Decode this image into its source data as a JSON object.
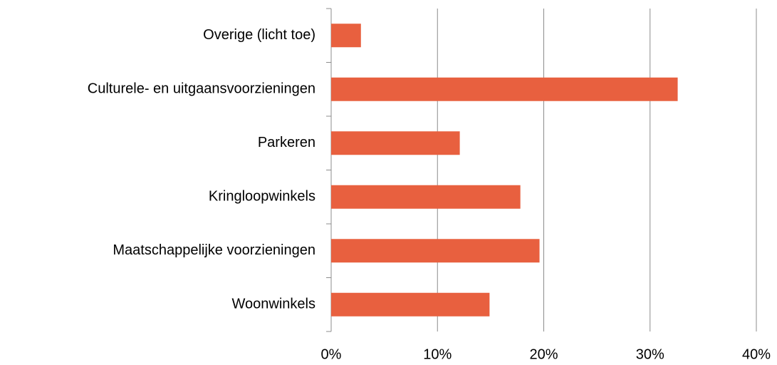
{
  "chart_data": {
    "type": "bar",
    "orientation": "horizontal",
    "categories": [
      "Overige (licht toe)",
      "Culturele- en uitgaansvoorzieningen",
      "Parkeren",
      "Kringloopwinkels",
      "Maatschappelijke voorzieningen",
      "Woonwinkels"
    ],
    "values": [
      2.8,
      32.6,
      12.1,
      17.8,
      19.6,
      14.9
    ],
    "color": "#e8603f",
    "xlim": [
      0,
      40
    ],
    "xticks": [
      {
        "value": 0,
        "label": "0%"
      },
      {
        "value": 10,
        "label": "10%"
      },
      {
        "value": 20,
        "label": "20%"
      },
      {
        "value": 30,
        "label": "30%"
      },
      {
        "value": 40,
        "label": "40%"
      }
    ],
    "grid": true
  }
}
